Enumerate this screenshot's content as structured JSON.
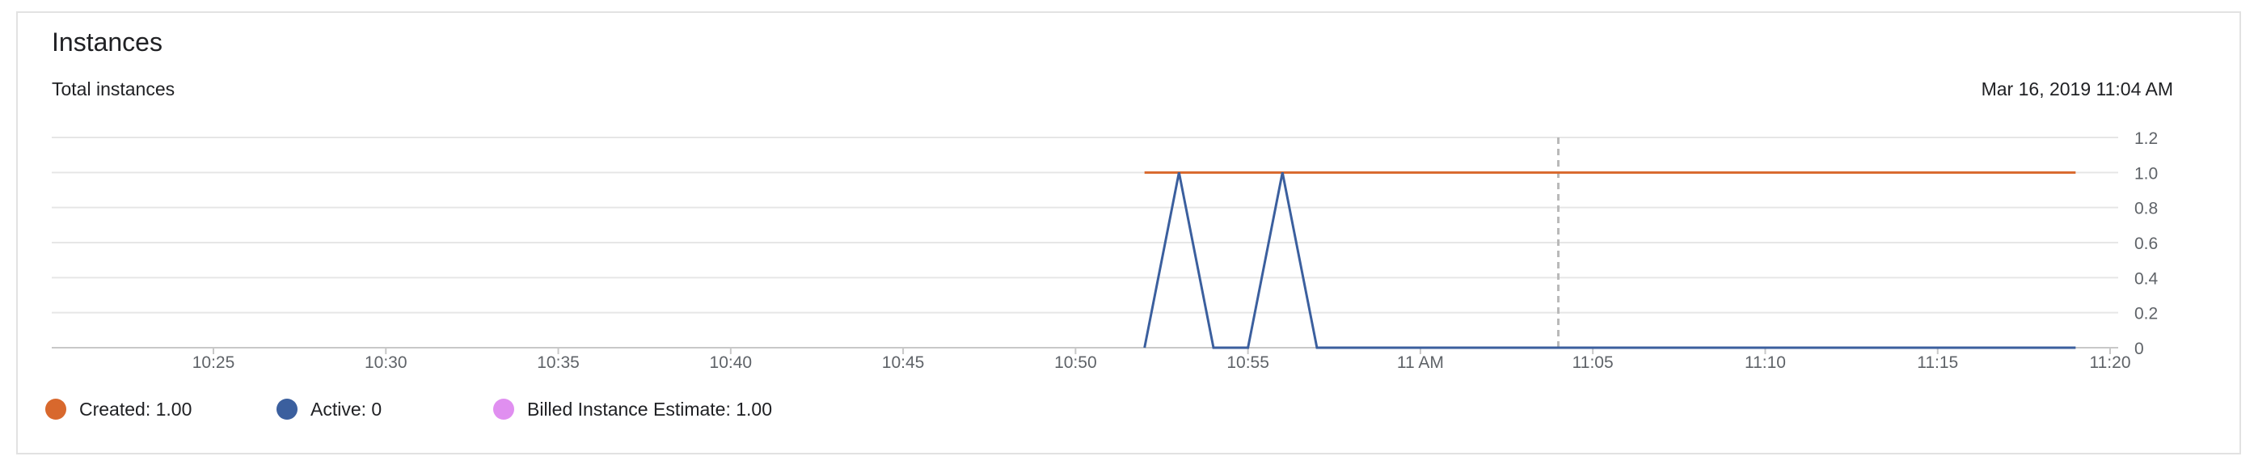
{
  "card": {
    "title": "Instances",
    "subtitle": "Total instances",
    "timestamp": "Mar 16, 2019 11:04 AM"
  },
  "colors": {
    "created": "#d8682d",
    "active": "#3b5f9e",
    "billed": "#e08ff0",
    "grid": "#e6e6e6",
    "axis": "#c8c8c8",
    "hover_line": "#b9b9b9",
    "tick_text": "#5f6368"
  },
  "legend": [
    {
      "name": "created",
      "label": "Created: 1.00",
      "color": "#d8682d"
    },
    {
      "name": "active",
      "label": "Active: 0",
      "color": "#3b5f9e"
    },
    {
      "name": "billed",
      "label": "Billed Instance Estimate: 1.00",
      "color": "#e08ff0"
    }
  ],
  "chart_data": {
    "type": "line",
    "title": "Instances",
    "subtitle": "Total instances",
    "xlabel": "",
    "ylabel": "",
    "xlim": [
      "10:21",
      "11:20"
    ],
    "ylim": [
      0,
      1.2
    ],
    "x_ticks": [
      "10:25",
      "10:30",
      "10:35",
      "10:40",
      "10:45",
      "10:50",
      "10:55",
      "11 AM",
      "11:05",
      "11:10",
      "11:15",
      "11:20"
    ],
    "x_tick_times": [
      "10:25",
      "10:30",
      "10:35",
      "10:40",
      "10:45",
      "10:50",
      "10:55",
      "11:00",
      "11:05",
      "11:10",
      "11:15",
      "11:20"
    ],
    "y_ticks": [
      0,
      0.2,
      0.4,
      0.6,
      0.8,
      1.0,
      1.2
    ],
    "y_tick_labels": [
      "0",
      "0.2",
      "0.4",
      "0.6",
      "0.8",
      "1.0",
      "1.2"
    ],
    "y_axis_side": "right",
    "grid": true,
    "legend_position": "bottom",
    "hover_time": "11:04",
    "series": [
      {
        "name": "Created",
        "color": "#d8682d",
        "points": [
          {
            "x": "10:52",
            "y": 1
          },
          {
            "x": "11:19",
            "y": 1
          }
        ]
      },
      {
        "name": "Active",
        "color": "#3b5f9e",
        "points": [
          {
            "x": "10:52",
            "y": 0
          },
          {
            "x": "10:53",
            "y": 1
          },
          {
            "x": "10:54",
            "y": 0
          },
          {
            "x": "10:55",
            "y": 0
          },
          {
            "x": "10:56",
            "y": 1
          },
          {
            "x": "10:57",
            "y": 0
          },
          {
            "x": "11:19",
            "y": 0
          }
        ]
      }
    ]
  }
}
